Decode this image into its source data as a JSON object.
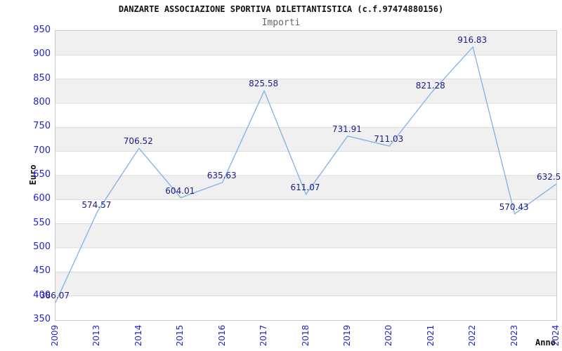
{
  "title": "DANZARTE ASSOCIAZIONE SPORTIVA DILETTANTISTICA (c.f.97474880156)",
  "subtitle": "Importi",
  "chart_data": {
    "type": "line",
    "title": "DANZARTE ASSOCIAZIONE SPORTIVA DILETTANTISTICA (c.f.97474880156)",
    "subtitle": "Importi",
    "categories": [
      "2009",
      "2013",
      "2014",
      "2015",
      "2016",
      "2017",
      "2018",
      "2019",
      "2020",
      "2021",
      "2022",
      "2023",
      "2024"
    ],
    "values": [
      386.07,
      574.57,
      706.52,
      604.01,
      635.63,
      825.58,
      611.07,
      731.91,
      711.03,
      821.28,
      916.83,
      570.43,
      632.5
    ],
    "xlabel": "Anno",
    "ylabel": "Euro",
    "ylim": [
      350,
      950
    ],
    "ytick_step": 50,
    "grid": "horizontal-alternating-bands",
    "legend_position": "none",
    "data_labels_visible": true,
    "colors": {
      "line": "#7fb0e6",
      "tick_label": "#2323cc",
      "data_label": "#1b1b85",
      "band_gray": "#f0f0f0",
      "gridline": "#dcdcdc",
      "plot_border": "#c9c9c9",
      "title": "#111111",
      "subtitle": "#666666"
    }
  }
}
